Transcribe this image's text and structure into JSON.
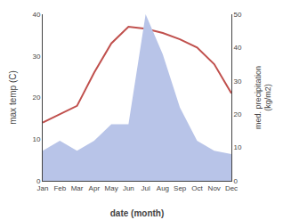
{
  "chart_data": {
    "type": "line",
    "categories": [
      "Jan",
      "Feb",
      "Mar",
      "Apr",
      "May",
      "Jun",
      "Jul",
      "Aug",
      "Sep",
      "Oct",
      "Nov",
      "Dec"
    ],
    "series": [
      {
        "type": "area",
        "axis": "y2",
        "color": "#b8c4e8",
        "values": [
          9,
          12,
          9,
          12,
          17,
          17,
          50,
          38,
          22,
          12,
          9,
          8
        ]
      },
      {
        "type": "line",
        "color": "#c0504d",
        "values": [
          14,
          16,
          18,
          26,
          33,
          37,
          36.5,
          35.5,
          34,
          32,
          28,
          21
        ]
      }
    ],
    "xlabel": "date (month)",
    "ylabel": "max temp (C)",
    "y2label": "med. precipitation\n(kg/m2)",
    "ylim": [
      0,
      40
    ],
    "yticks": [
      0,
      10,
      20,
      30,
      40
    ],
    "y2lim": [
      0,
      50
    ],
    "y2ticks": [
      0,
      10,
      20,
      30,
      40,
      50
    ],
    "grid": false
  }
}
